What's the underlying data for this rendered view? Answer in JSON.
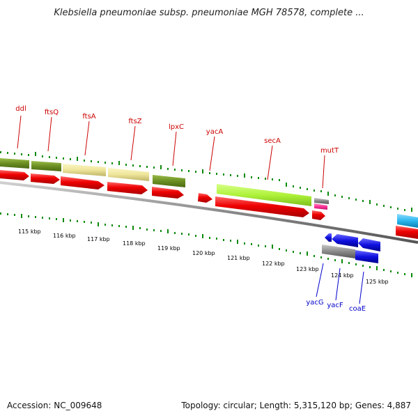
{
  "title": "Klebsiella pneumoniae subsp. pneumoniae MGH 78578, complete ...",
  "footer": {
    "accession": "Accession: NC_009648",
    "topology": "Topology: circular; Length: 5,315,120 bp; Genes: 4,887"
  },
  "colors": {
    "forward_cds": "#e00000",
    "olive": "#6b8e23",
    "khaki": "#e8e090",
    "lime": "#aef23a",
    "grey": "#8a8a8a",
    "pink": "#ff3399",
    "blue": "#1010e0",
    "cyan": "#2ab7ee",
    "tick_green": "#0b8a0b",
    "backbone": "#888888"
  },
  "genes_top": [
    {
      "label": "ddl"
    },
    {
      "label": "ftsQ"
    },
    {
      "label": "ftsA"
    },
    {
      "label": "ftsZ"
    },
    {
      "label": "lpxC"
    },
    {
      "label": "yacA"
    },
    {
      "label": "secA"
    },
    {
      "label": "mutT"
    }
  ],
  "genes_bottom": [
    {
      "label": "yacG"
    },
    {
      "label": "yacF"
    },
    {
      "label": "coaE"
    }
  ],
  "kbp_ticks": [
    "115 kbp",
    "116 kbp",
    "117 kbp",
    "118 kbp",
    "119 kbp",
    "120 kbp",
    "121 kbp",
    "122 kbp",
    "123 kbp",
    "124 kbp",
    "125 kbp"
  ]
}
